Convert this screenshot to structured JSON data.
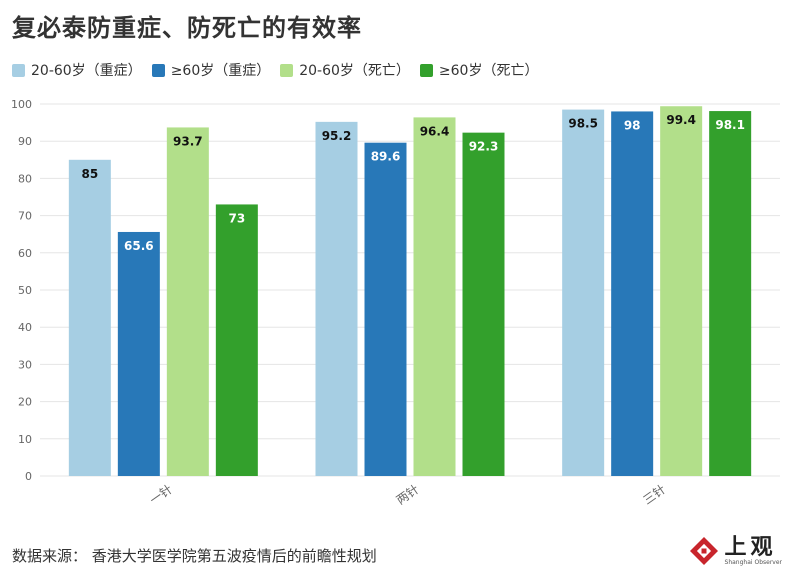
{
  "title": "复必泰防重症、防死亡的有效率",
  "source": "数据来源： 香港大学医学院第五波疫情后的前瞻性规划",
  "logo": {
    "cn": "上观",
    "en": "Shanghai Observer",
    "mark": "shanghai-observer-logo-icon"
  },
  "colors": {
    "s1": "#a6cee3",
    "s2": "#2878b8",
    "s3": "#b2df8a",
    "s4": "#33a02c",
    "grid": "#e5e5e5",
    "axis_text": "#666666",
    "label_dark": "#111111",
    "label_light": "#ffffff"
  },
  "chart_data": {
    "type": "bar",
    "title": "复必泰防重症、防死亡的有效率",
    "categories": [
      "一针",
      "两针",
      "三针"
    ],
    "series": [
      {
        "name": "20-60岁（重症）",
        "values": [
          85,
          95.2,
          98.5
        ]
      },
      {
        "name": "≥60岁（重症）",
        "values": [
          65.6,
          89.6,
          98
        ]
      },
      {
        "name": "20-60岁（死亡）",
        "values": [
          93.7,
          96.4,
          99.4
        ]
      },
      {
        "name": "≥60岁（死亡）",
        "values": [
          73,
          92.3,
          98.1
        ]
      }
    ],
    "yticks": [
      0,
      10,
      20,
      30,
      40,
      50,
      60,
      70,
      80,
      90,
      100
    ],
    "ylim": [
      0,
      100
    ],
    "xlabel": "",
    "ylabel": "",
    "grid": true,
    "legend": "top-left",
    "data_labels": true
  }
}
